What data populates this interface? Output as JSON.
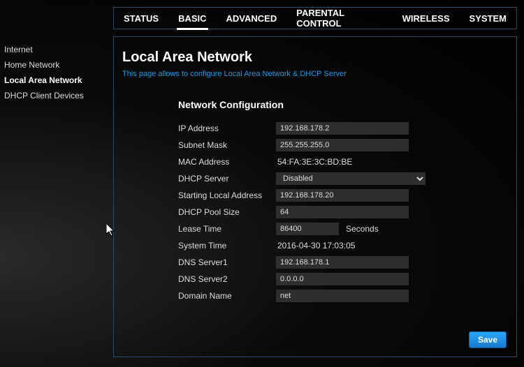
{
  "topnav": {
    "tabs": [
      "STATUS",
      "BASIC",
      "ADVANCED",
      "PARENTAL CONTROL",
      "WIRELESS",
      "SYSTEM"
    ],
    "active_index": 1
  },
  "sidebar": {
    "items": [
      "Internet",
      "Home Network",
      "Local Area Network",
      "DHCP Client Devices"
    ],
    "active_index": 2
  },
  "page": {
    "title": "Local Area Network",
    "subtitle": "This page allows to configure Local Area Network & DHCP Server",
    "section_title": "Network Configuration",
    "save_label": "Save"
  },
  "fields": {
    "ip_address": {
      "label": "IP Address",
      "type": "text",
      "value": "192.168.178.2"
    },
    "subnet_mask": {
      "label": "Subnet Mask",
      "type": "text",
      "value": "255.255.255.0"
    },
    "mac_address": {
      "label": "MAC Address",
      "type": "static",
      "value": "54:FA:3E:3C:BD:BE"
    },
    "dhcp_server": {
      "label": "DHCP Server",
      "type": "select",
      "value": "Disabled"
    },
    "starting_local": {
      "label": "Starting Local Address",
      "type": "text",
      "value": "192.168.178.20"
    },
    "dhcp_pool_size": {
      "label": "DHCP Pool Size",
      "type": "text",
      "value": "64"
    },
    "lease_time": {
      "label": "Lease Time",
      "type": "text",
      "value": "86400",
      "short": true,
      "suffix": "Seconds"
    },
    "system_time": {
      "label": "System Time",
      "type": "static",
      "value": "2016-04-30 17:03:05"
    },
    "dns1": {
      "label": "DNS Server1",
      "type": "text",
      "value": "192.168.178.1"
    },
    "dns2": {
      "label": "DNS Server2",
      "type": "text",
      "value": "0.0.0.0"
    },
    "domain_name": {
      "label": "Domain Name",
      "type": "text",
      "value": "net"
    }
  },
  "field_order": [
    "ip_address",
    "subnet_mask",
    "mac_address",
    "dhcp_server",
    "starting_local",
    "dhcp_pool_size",
    "lease_time",
    "system_time",
    "dns1",
    "dns2",
    "domain_name"
  ],
  "colors": {
    "border": "#2a4a6a",
    "link": "#1a9be8",
    "input_bg": "#2e2e2e",
    "save_top": "#2aa6ff",
    "save_bottom": "#1a7acc"
  }
}
